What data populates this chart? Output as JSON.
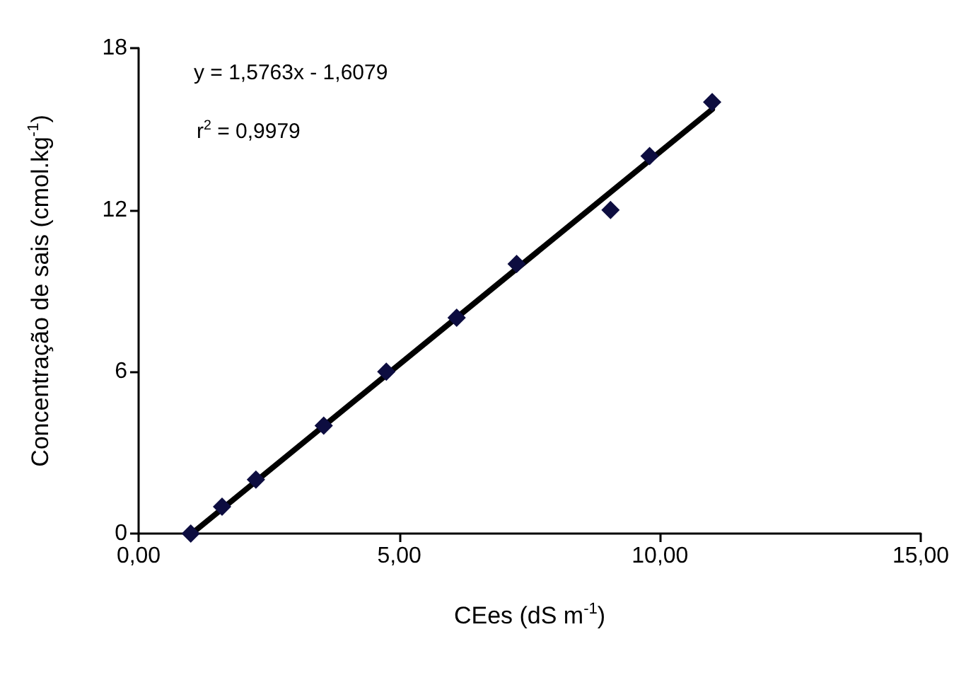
{
  "chart_data": {
    "type": "scatter",
    "xlabel": "CEes (dS m$^{-1}$)",
    "ylabel": "Concentração de sais (cmol.kg$^{-1}$)",
    "annotations": [
      "y = 1,5763x - 1,6079",
      "r$^{2}$ = 0,9979"
    ],
    "xlim": [
      0,
      15
    ],
    "xticks": [
      {
        "value": 0,
        "label": "0,00"
      },
      {
        "value": 5,
        "label": "5,00"
      },
      {
        "value": 10,
        "label": "10,00"
      },
      {
        "value": 15,
        "label": "15,00"
      }
    ],
    "ylim": [
      0,
      18
    ],
    "yticks": [
      0,
      6,
      12,
      18
    ],
    "grid": false,
    "marker": "diamond",
    "series": [
      {
        "color": "#0d0d40",
        "x": [
          1.0,
          1.6,
          2.25,
          3.55,
          4.75,
          6.1,
          7.25,
          9.05,
          9.8,
          11.0
        ],
        "values": [
          0,
          1,
          2,
          4,
          6,
          8,
          10,
          12,
          14,
          16
        ]
      },
      {
        "type": "line",
        "color": "#000000",
        "line_style": "solid",
        "marker": "none",
        "x": [
          1.02,
          11.0
        ],
        "values": [
          0.0,
          15.73
        ]
      }
    ]
  }
}
